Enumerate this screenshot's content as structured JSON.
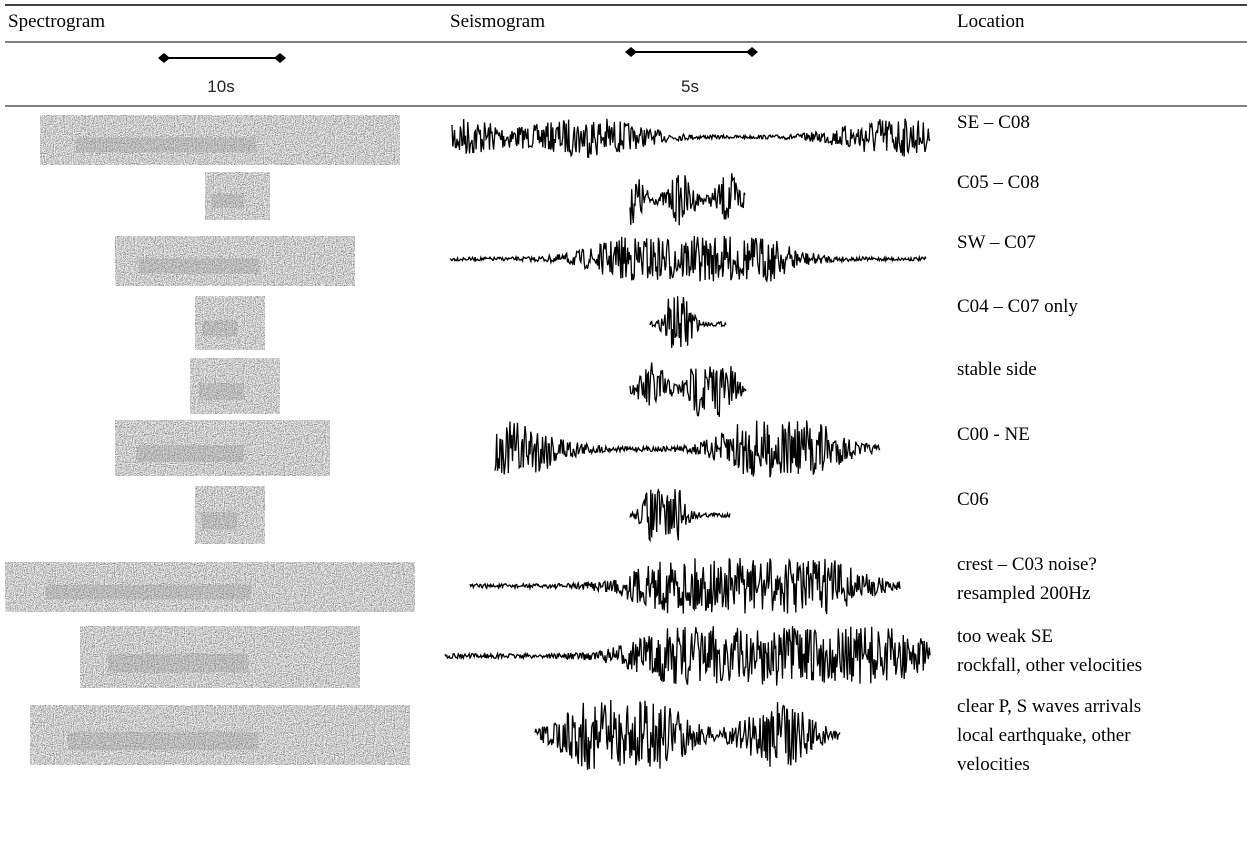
{
  "header": {
    "columns": [
      "Spectrogram",
      "Seismogram",
      "Location"
    ]
  },
  "scale_bars": {
    "spectrogram": "10s",
    "seismogram": "5s"
  },
  "rows": [
    {
      "location": [
        "SE – C08"
      ]
    },
    {
      "location": [
        "C05 – C08"
      ]
    },
    {
      "location": [
        "SW – C07"
      ]
    },
    {
      "location": [
        "C04 – C07 only"
      ]
    },
    {
      "location": [
        "stable side"
      ]
    },
    {
      "location": [
        "C00 - NE"
      ]
    },
    {
      "location": [
        "C06"
      ]
    },
    {
      "location": [
        "crest – C03 noise?",
        "resampled 200Hz"
      ]
    },
    {
      "location": [
        "too weak SE",
        "rockfall, other velocities"
      ]
    },
    {
      "location": [
        "clear P, S waves arrivals",
        "local earthquake, other",
        "velocities"
      ]
    }
  ]
}
